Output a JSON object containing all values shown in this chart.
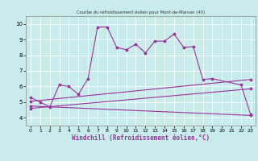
{
  "title": "Courbe du refroidissement éolien pour Mont-de-Marsan (40)",
  "xlabel": "Windchill (Refroidissement éolien,°C)",
  "xlim": [
    -0.5,
    23.5
  ],
  "ylim": [
    3.5,
    10.5
  ],
  "yticks": [
    4,
    5,
    6,
    7,
    8,
    9,
    10
  ],
  "xticks": [
    0,
    1,
    2,
    3,
    4,
    5,
    6,
    7,
    8,
    9,
    10,
    11,
    12,
    13,
    14,
    15,
    16,
    17,
    18,
    19,
    20,
    21,
    22,
    23
  ],
  "bg_color": "#c8ecec",
  "grid_color": "#aadddd",
  "line_color": "#993399",
  "main_line_x": [
    0,
    1,
    2,
    3,
    4,
    5,
    6,
    7,
    8,
    9,
    10,
    11,
    12,
    13,
    14,
    15,
    16,
    17,
    18,
    19,
    22,
    23
  ],
  "main_line_y": [
    5.3,
    5.0,
    4.7,
    6.1,
    6.0,
    5.5,
    6.5,
    9.8,
    9.8,
    8.5,
    8.35,
    8.7,
    8.15,
    8.9,
    8.9,
    9.35,
    8.5,
    8.55,
    6.45,
    6.5,
    6.1,
    4.2
  ],
  "straight_lines": [
    {
      "x": [
        0,
        23
      ],
      "y": [
        5.05,
        6.45
      ]
    },
    {
      "x": [
        0,
        23
      ],
      "y": [
        4.75,
        4.15
      ]
    },
    {
      "x": [
        0,
        23
      ],
      "y": [
        4.6,
        5.85
      ]
    }
  ]
}
